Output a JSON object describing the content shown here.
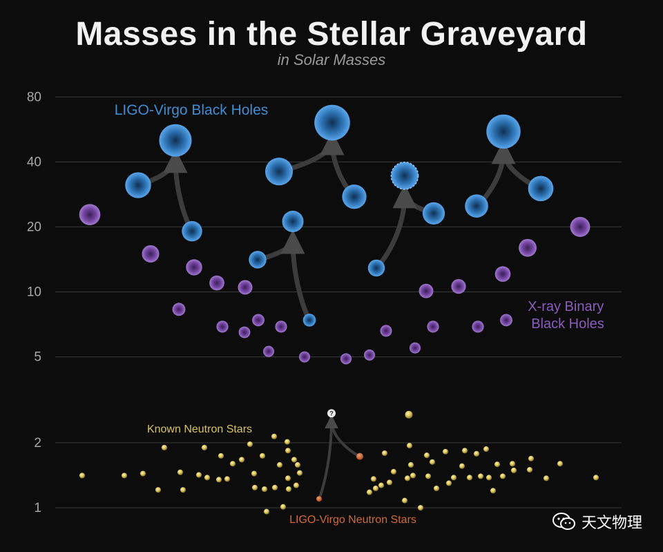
{
  "title": "Masses in the Stellar Graveyard",
  "subtitle": "in Solar Masses",
  "watermark": "天文物理",
  "chart_data": {
    "type": "scatter",
    "title": "Masses in the Stellar Graveyard",
    "subtitle": "in Solar Masses",
    "yscale": "log",
    "ylim": [
      1,
      80
    ],
    "yticks": [
      1,
      2,
      5,
      10,
      20,
      40,
      80
    ],
    "grid": true,
    "annotations": [
      "LIGO-Virgo Black Holes",
      "X-ray Binary\nBlack Holes",
      "Known Neutron Stars",
      "LIGO-Virgo Neutron Stars"
    ],
    "colors": {
      "ligo_bh": "#3f8ed4",
      "xray_bh": "#8a56b8",
      "ns": "#d8c35a",
      "ligo_ns": "#d26a35",
      "grid": "#3a3a3a"
    },
    "ligo_black_holes": [
      {
        "x": 200,
        "mass": 31.2
      },
      {
        "x": 278,
        "mass": 19.1
      },
      {
        "x": 254,
        "mass": 50.3
      },
      {
        "x": 373,
        "mass": 14.1
      },
      {
        "x": 448,
        "mass": 7.4
      },
      {
        "x": 424,
        "mass": 21.2
      },
      {
        "x": 404,
        "mass": 36.1
      },
      {
        "x": 513,
        "mass": 27.6
      },
      {
        "x": 481,
        "mass": 60.8
      },
      {
        "x": 545,
        "mass": 12.9
      },
      {
        "x": 628,
        "mass": 23.1
      },
      {
        "x": 586,
        "mass": 34.5,
        "dashed": true
      },
      {
        "x": 690,
        "mass": 25.0
      },
      {
        "x": 783,
        "mass": 30.1
      },
      {
        "x": 729,
        "mass": 55.3
      }
    ],
    "mergers": [
      {
        "from": [
          [
            200,
            31.2
          ],
          [
            278,
            19.1
          ]
        ],
        "to": [
          254,
          50.3
        ]
      },
      {
        "from": [
          [
            373,
            14.1
          ],
          [
            448,
            7.4
          ]
        ],
        "to": [
          424,
          21.2
        ]
      },
      {
        "from": [
          [
            404,
            36.1
          ],
          [
            513,
            27.6
          ]
        ],
        "to": [
          481,
          60.8
        ]
      },
      {
        "from": [
          [
            545,
            12.9
          ],
          [
            628,
            23.1
          ]
        ],
        "to": [
          586,
          34.5
        ]
      },
      {
        "from": [
          [
            690,
            25.0
          ],
          [
            783,
            30.1
          ]
        ],
        "to": [
          729,
          55.3
        ]
      }
    ],
    "xray_black_holes": [
      {
        "x": 130,
        "mass": 22.8
      },
      {
        "x": 218,
        "mass": 15.0
      },
      {
        "x": 259,
        "mass": 8.3
      },
      {
        "x": 281,
        "mass": 13.0
      },
      {
        "x": 314,
        "mass": 11.0
      },
      {
        "x": 322,
        "mass": 6.9
      },
      {
        "x": 355,
        "mass": 10.5
      },
      {
        "x": 354,
        "mass": 6.5
      },
      {
        "x": 374,
        "mass": 7.4
      },
      {
        "x": 389,
        "mass": 5.3
      },
      {
        "x": 407,
        "mass": 6.9
      },
      {
        "x": 441,
        "mass": 5.0
      },
      {
        "x": 501,
        "mass": 4.9
      },
      {
        "x": 535,
        "mass": 5.1
      },
      {
        "x": 559,
        "mass": 6.6
      },
      {
        "x": 601,
        "mass": 5.5
      },
      {
        "x": 617,
        "mass": 10.1
      },
      {
        "x": 627,
        "mass": 6.9
      },
      {
        "x": 664,
        "mass": 10.6
      },
      {
        "x": 692,
        "mass": 6.9
      },
      {
        "x": 728,
        "mass": 12.1
      },
      {
        "x": 733,
        "mass": 7.4
      },
      {
        "x": 764,
        "mass": 16.0
      },
      {
        "x": 840,
        "mass": 20.0
      }
    ],
    "neutron_stars": [
      {
        "x": 119,
        "mass": 1.41
      },
      {
        "x": 180,
        "mass": 1.41
      },
      {
        "x": 207,
        "mass": 1.44
      },
      {
        "x": 229,
        "mass": 1.21
      },
      {
        "x": 238,
        "mass": 1.9
      },
      {
        "x": 261,
        "mass": 1.46
      },
      {
        "x": 265,
        "mass": 1.21
      },
      {
        "x": 288,
        "mass": 1.42
      },
      {
        "x": 296,
        "mass": 1.9
      },
      {
        "x": 300,
        "mass": 1.38
      },
      {
        "x": 317,
        "mass": 1.35
      },
      {
        "x": 320,
        "mass": 1.74
      },
      {
        "x": 329,
        "mass": 1.36
      },
      {
        "x": 337,
        "mass": 1.6
      },
      {
        "x": 350,
        "mass": 1.67
      },
      {
        "x": 362,
        "mass": 1.97
      },
      {
        "x": 368,
        "mass": 1.44
      },
      {
        "x": 369,
        "mass": 1.24
      },
      {
        "x": 380,
        "mass": 1.74
      },
      {
        "x": 383,
        "mass": 1.22
      },
      {
        "x": 386,
        "mass": 0.96
      },
      {
        "x": 397,
        "mass": 2.14
      },
      {
        "x": 398,
        "mass": 1.24
      },
      {
        "x": 405,
        "mass": 1.58
      },
      {
        "x": 410,
        "mass": 1.01
      },
      {
        "x": 416,
        "mass": 2.02
      },
      {
        "x": 417,
        "mass": 1.84
      },
      {
        "x": 417,
        "mass": 1.37
      },
      {
        "x": 418,
        "mass": 1.22
      },
      {
        "x": 426,
        "mass": 1.67
      },
      {
        "x": 429,
        "mass": 1.27
      },
      {
        "x": 431,
        "mass": 1.58
      },
      {
        "x": 434,
        "mass": 1.45
      },
      {
        "x": 535,
        "mass": 1.18
      },
      {
        "x": 541,
        "mass": 1.36
      },
      {
        "x": 544,
        "mass": 1.23
      },
      {
        "x": 552,
        "mass": 1.27
      },
      {
        "x": 557,
        "mass": 1.79
      },
      {
        "x": 564,
        "mass": 1.31
      },
      {
        "x": 570,
        "mass": 1.47
      },
      {
        "x": 586,
        "mass": 1.08
      },
      {
        "x": 590,
        "mass": 1.37
      },
      {
        "x": 592,
        "mass": 2.7
      },
      {
        "x": 593,
        "mass": 1.94
      },
      {
        "x": 595,
        "mass": 1.58
      },
      {
        "x": 598,
        "mass": 1.41
      },
      {
        "x": 609,
        "mass": 1.0
      },
      {
        "x": 618,
        "mass": 1.75
      },
      {
        "x": 620,
        "mass": 1.4
      },
      {
        "x": 626,
        "mass": 1.63
      },
      {
        "x": 632,
        "mass": 1.23
      },
      {
        "x": 645,
        "mass": 1.82
      },
      {
        "x": 650,
        "mass": 1.3
      },
      {
        "x": 657,
        "mass": 1.38
      },
      {
        "x": 669,
        "mass": 1.56
      },
      {
        "x": 673,
        "mass": 1.84
      },
      {
        "x": 680,
        "mass": 1.38
      },
      {
        "x": 690,
        "mass": 1.78
      },
      {
        "x": 696,
        "mass": 1.4
      },
      {
        "x": 704,
        "mass": 1.87
      },
      {
        "x": 708,
        "mass": 1.38
      },
      {
        "x": 714,
        "mass": 1.2
      },
      {
        "x": 720,
        "mass": 1.59
      },
      {
        "x": 728,
        "mass": 1.4
      },
      {
        "x": 742,
        "mass": 1.6
      },
      {
        "x": 744,
        "mass": 1.49
      },
      {
        "x": 767,
        "mass": 1.5
      },
      {
        "x": 769,
        "mass": 1.69
      },
      {
        "x": 791,
        "mass": 1.37
      },
      {
        "x": 811,
        "mass": 1.6
      },
      {
        "x": 863,
        "mass": 1.38
      }
    ],
    "ligo_neutron_stars": [
      {
        "x": 462,
        "mass": 1.1
      },
      {
        "x": 521,
        "mass": 1.73
      }
    ],
    "ligo_ns_merger": {
      "from": [
        [
          462,
          1.1
        ],
        [
          521,
          1.73
        ]
      ],
      "to": [
        480,
        2.74
      ],
      "remnant_label": "?"
    }
  }
}
